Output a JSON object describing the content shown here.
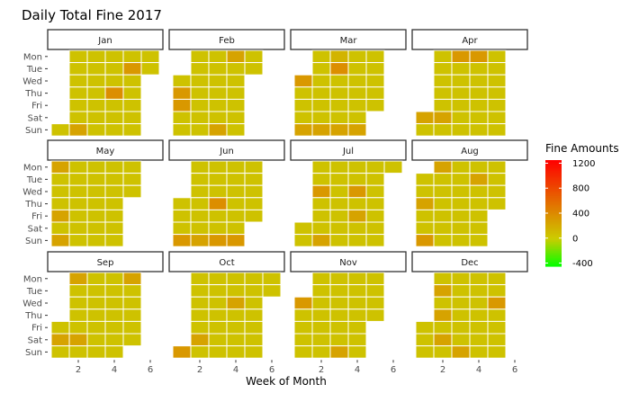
{
  "chart_data": {
    "type": "heatmap",
    "title": "Daily Total Fine 2017",
    "xlabel": "Week of Month",
    "ylabel": "",
    "x_ticks": [
      2,
      4,
      6
    ],
    "xlim": [
      0.3,
      6.7
    ],
    "weekdays": [
      "Mon",
      "Tue",
      "Wed",
      "Thu",
      "Fri",
      "Sat",
      "Sun"
    ],
    "legend": {
      "title": "Fine Amounts",
      "ticks": [
        1200,
        800,
        400,
        0,
        -400
      ],
      "range": [
        -450,
        1250
      ],
      "colors": {
        "low": "#00ff00",
        "mid": "#cccc00",
        "high": "#ff0000"
      },
      "placement": "right"
    },
    "months": [
      {
        "name": "Jan",
        "weeks": [
          [
            null,
            60,
            60,
            60,
            60,
            60
          ],
          [
            null,
            60,
            60,
            60,
            320,
            60
          ],
          [
            null,
            60,
            60,
            60,
            60,
            null
          ],
          [
            null,
            60,
            60,
            380,
            60,
            null
          ],
          [
            null,
            60,
            60,
            60,
            60,
            null
          ],
          [
            null,
            60,
            60,
            60,
            60,
            null
          ],
          [
            60,
            250,
            60,
            60,
            60,
            null
          ]
        ]
      },
      {
        "name": "Feb",
        "weeks": [
          [
            null,
            60,
            60,
            250,
            60,
            null
          ],
          [
            null,
            60,
            60,
            60,
            60,
            null
          ],
          [
            60,
            60,
            60,
            60,
            null,
            null
          ],
          [
            320,
            60,
            60,
            60,
            null,
            null
          ],
          [
            320,
            60,
            60,
            60,
            null,
            null
          ],
          [
            60,
            60,
            60,
            60,
            null,
            null
          ],
          [
            60,
            60,
            250,
            60,
            null,
            null
          ]
        ]
      },
      {
        "name": "Mar",
        "weeks": [
          [
            null,
            60,
            150,
            60,
            60,
            null
          ],
          [
            null,
            60,
            380,
            60,
            60,
            null
          ],
          [
            320,
            60,
            60,
            60,
            60,
            null
          ],
          [
            60,
            60,
            60,
            60,
            60,
            null
          ],
          [
            60,
            60,
            60,
            60,
            60,
            null
          ],
          [
            60,
            60,
            60,
            60,
            null,
            null
          ],
          [
            250,
            250,
            250,
            250,
            null,
            null
          ]
        ]
      },
      {
        "name": "Apr",
        "weeks": [
          [
            null,
            60,
            320,
            320,
            60,
            null
          ],
          [
            null,
            60,
            60,
            60,
            60,
            null
          ],
          [
            null,
            60,
            60,
            60,
            60,
            null
          ],
          [
            null,
            60,
            60,
            60,
            60,
            null
          ],
          [
            null,
            60,
            60,
            60,
            60,
            null
          ],
          [
            250,
            250,
            60,
            60,
            60,
            null
          ],
          [
            60,
            60,
            60,
            60,
            60,
            null
          ]
        ]
      },
      {
        "name": "May",
        "weeks": [
          [
            250,
            60,
            60,
            60,
            60,
            null
          ],
          [
            60,
            60,
            60,
            60,
            60,
            null
          ],
          [
            60,
            60,
            60,
            60,
            60,
            null
          ],
          [
            60,
            60,
            60,
            60,
            null,
            null
          ],
          [
            250,
            60,
            60,
            60,
            null,
            null
          ],
          [
            60,
            60,
            60,
            60,
            null,
            null
          ],
          [
            250,
            60,
            60,
            60,
            null,
            null
          ]
        ]
      },
      {
        "name": "Jun",
        "weeks": [
          [
            null,
            60,
            60,
            60,
            60,
            null
          ],
          [
            null,
            60,
            60,
            60,
            60,
            null
          ],
          [
            null,
            60,
            60,
            60,
            60,
            null
          ],
          [
            60,
            60,
            380,
            60,
            60,
            null
          ],
          [
            60,
            60,
            60,
            60,
            60,
            null
          ],
          [
            60,
            60,
            60,
            60,
            null,
            null
          ],
          [
            320,
            250,
            320,
            320,
            null,
            null
          ]
        ]
      },
      {
        "name": "Jul",
        "weeks": [
          [
            null,
            60,
            60,
            60,
            60,
            60
          ],
          [
            null,
            60,
            60,
            60,
            60,
            null
          ],
          [
            null,
            320,
            60,
            320,
            60,
            null
          ],
          [
            null,
            60,
            60,
            60,
            60,
            null
          ],
          [
            null,
            60,
            60,
            250,
            60,
            null
          ],
          [
            60,
            60,
            60,
            60,
            60,
            null
          ],
          [
            60,
            250,
            60,
            60,
            60,
            null
          ]
        ]
      },
      {
        "name": "Aug",
        "weeks": [
          [
            null,
            250,
            60,
            60,
            60,
            null
          ],
          [
            60,
            60,
            60,
            250,
            60,
            null
          ],
          [
            60,
            60,
            60,
            60,
            60,
            null
          ],
          [
            250,
            60,
            60,
            60,
            60,
            null
          ],
          [
            60,
            60,
            60,
            60,
            null,
            null
          ],
          [
            60,
            60,
            60,
            60,
            null,
            null
          ],
          [
            320,
            60,
            60,
            60,
            null,
            null
          ]
        ]
      },
      {
        "name": "Sep",
        "weeks": [
          [
            null,
            250,
            60,
            60,
            250,
            null
          ],
          [
            null,
            60,
            60,
            60,
            60,
            null
          ],
          [
            null,
            60,
            60,
            60,
            60,
            null
          ],
          [
            null,
            60,
            60,
            60,
            60,
            null
          ],
          [
            60,
            60,
            60,
            60,
            60,
            null
          ],
          [
            250,
            250,
            60,
            60,
            60,
            null
          ],
          [
            60,
            60,
            60,
            60,
            null,
            null
          ]
        ]
      },
      {
        "name": "Oct",
        "weeks": [
          [
            null,
            60,
            60,
            60,
            60,
            60
          ],
          [
            null,
            60,
            60,
            60,
            60,
            60
          ],
          [
            null,
            60,
            60,
            250,
            60,
            null
          ],
          [
            null,
            60,
            60,
            60,
            60,
            null
          ],
          [
            null,
            60,
            60,
            60,
            60,
            null
          ],
          [
            null,
            250,
            60,
            60,
            60,
            null
          ],
          [
            320,
            60,
            60,
            60,
            60,
            null
          ]
        ]
      },
      {
        "name": "Nov",
        "weeks": [
          [
            null,
            60,
            60,
            60,
            60,
            null
          ],
          [
            null,
            60,
            60,
            60,
            60,
            null
          ],
          [
            320,
            60,
            60,
            60,
            60,
            null
          ],
          [
            60,
            60,
            60,
            60,
            60,
            null
          ],
          [
            60,
            60,
            60,
            60,
            null,
            null
          ],
          [
            60,
            60,
            60,
            60,
            null,
            null
          ],
          [
            60,
            60,
            250,
            60,
            null,
            null
          ]
        ]
      },
      {
        "name": "Dec",
        "weeks": [
          [
            null,
            60,
            60,
            60,
            60,
            null
          ],
          [
            null,
            250,
            60,
            60,
            60,
            null
          ],
          [
            null,
            60,
            60,
            60,
            320,
            null
          ],
          [
            null,
            250,
            60,
            60,
            60,
            null
          ],
          [
            60,
            60,
            60,
            60,
            60,
            null
          ],
          [
            60,
            250,
            60,
            60,
            60,
            null
          ],
          [
            60,
            60,
            250,
            60,
            60,
            null
          ]
        ]
      }
    ]
  }
}
